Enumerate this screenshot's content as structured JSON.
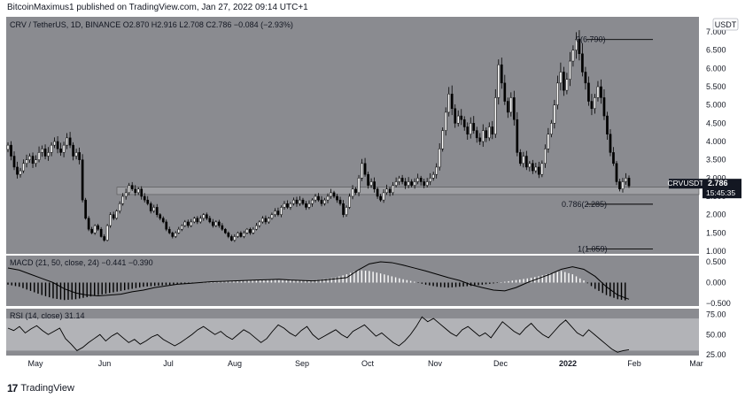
{
  "header": {
    "publisher": "BitcoinMaximus1",
    "published_text": "BitcoinMaximus1 published on TradingView.com, Jan 27, 2022 09:14 UTC+1"
  },
  "colors": {
    "price_bg": "#8a8b90",
    "indicator_bg": "#8a8b90",
    "rsi_band": "#b2b3b7",
    "candle": "#000000",
    "macd_pos": "#ffffff",
    "macd_neg": "#000000",
    "support_zone": "#9d9ea2",
    "price_tag": "#131722"
  },
  "chart_data": [
    {
      "type": "candlestick",
      "title": "CRV / TetherUS, 1D, BINANCE",
      "ohlc": {
        "open_label": "O",
        "open": "2.870",
        "high_label": "H",
        "high": "2.916",
        "low_label": "L",
        "low": "2.708",
        "close_label": "C",
        "close": "2.786",
        "change": "−0.084 (−2.93%)"
      },
      "currency": "USDT",
      "symbol": "CRVUSDT",
      "last_price": "2.786",
      "countdown": "15:45:35",
      "ylim": [
        1.0,
        7.0
      ],
      "y_ticks": [
        "7.000",
        "6.500",
        "6.000",
        "5.500",
        "5.000",
        "4.500",
        "4.000",
        "3.500",
        "3.000",
        "2.500",
        "2.000",
        "1.500",
        "1.000"
      ],
      "x_ticks": [
        "May",
        "Jun",
        "Jul",
        "Aug",
        "Sep",
        "Oct",
        "Nov",
        "Dec",
        "2022",
        "Feb",
        "Mar"
      ],
      "support_zone": [
        2.55,
        2.75
      ],
      "fib_levels": [
        {
          "label": "0(6.790)",
          "value": 6.79
        },
        {
          "label": "0.786(2.285)",
          "value": 2.285
        },
        {
          "label": "1(1.059)",
          "value": 1.059
        }
      ],
      "close_series": [
        3.9,
        3.6,
        3.3,
        3.1,
        3.2,
        3.4,
        3.5,
        3.6,
        3.4,
        3.5,
        3.7,
        3.8,
        3.6,
        3.7,
        3.9,
        4.0,
        3.8,
        3.7,
        3.9,
        4.1,
        3.9,
        3.6,
        3.7,
        3.5,
        2.4,
        1.9,
        1.6,
        1.5,
        1.7,
        1.6,
        1.4,
        1.3,
        1.7,
        2.0,
        1.9,
        2.1,
        2.3,
        2.5,
        2.6,
        2.8,
        2.7,
        2.6,
        2.7,
        2.5,
        2.4,
        2.3,
        2.1,
        2.2,
        2.0,
        1.9,
        1.8,
        1.6,
        1.5,
        1.4,
        1.5,
        1.6,
        1.7,
        1.8,
        1.7,
        1.8,
        1.9,
        1.8,
        1.9,
        2.0,
        1.9,
        1.8,
        1.7,
        1.8,
        1.7,
        1.6,
        1.5,
        1.4,
        1.3,
        1.4,
        1.5,
        1.4,
        1.5,
        1.6,
        1.5,
        1.6,
        1.7,
        1.8,
        1.9,
        1.8,
        1.9,
        2.0,
        2.1,
        2.0,
        2.2,
        2.3,
        2.2,
        2.3,
        2.4,
        2.3,
        2.4,
        2.3,
        2.2,
        2.3,
        2.4,
        2.5,
        2.4,
        2.3,
        2.4,
        2.5,
        2.6,
        2.5,
        2.4,
        2.3,
        2.0,
        2.2,
        2.5,
        2.7,
        2.6,
        3.0,
        3.4,
        3.1,
        2.8,
        2.9,
        2.7,
        2.5,
        2.4,
        2.6,
        2.7,
        2.6,
        2.8,
        2.9,
        3.0,
        2.9,
        2.8,
        2.9,
        2.8,
        2.9,
        3.0,
        2.9,
        2.8,
        2.9,
        3.0,
        3.1,
        3.3,
        3.8,
        4.3,
        4.8,
        5.3,
        4.9,
        4.5,
        4.7,
        4.6,
        4.4,
        4.2,
        4.5,
        4.3,
        4.1,
        4.0,
        4.3,
        4.1,
        4.4,
        4.2,
        5.2,
        6.1,
        5.6,
        5.1,
        4.8,
        5.2,
        4.6,
        3.7,
        3.4,
        3.6,
        3.3,
        3.4,
        3.2,
        3.3,
        3.1,
        3.4,
        3.8,
        4.2,
        4.5,
        5.0,
        5.6,
        5.9,
        5.4,
        5.7,
        6.2,
        6.5,
        6.8,
        6.4,
        5.9,
        5.6,
        5.1,
        4.9,
        5.2,
        5.5,
        5.2,
        4.7,
        4.2,
        3.7,
        3.4,
        2.9,
        2.7,
        2.9,
        3.0,
        2.786
      ]
    },
    {
      "type": "bar",
      "title": "MACD (21, 50, close, 24)",
      "values_text": [
        "−0.441",
        "−0.390"
      ],
      "ylim": [
        -0.5,
        0.5
      ],
      "y_ticks": [
        "0.500",
        "0.000",
        "−0.500"
      ],
      "signal_series": [
        0.35,
        0.3,
        0.2,
        0.1,
        0.0,
        -0.15,
        -0.25,
        -0.3,
        -0.32,
        -0.3,
        -0.28,
        -0.22,
        -0.18,
        -0.12,
        -0.08,
        -0.04,
        -0.02,
        0.0,
        0.02,
        0.03,
        0.04,
        0.05,
        0.06,
        0.07,
        0.08,
        0.06,
        0.05,
        0.04,
        0.06,
        0.09,
        0.12,
        0.3,
        0.45,
        0.5,
        0.48,
        0.42,
        0.35,
        0.28,
        0.2,
        0.12,
        0.05,
        -0.05,
        -0.12,
        -0.18,
        -0.2,
        -0.12,
        0.0,
        0.1,
        0.2,
        0.32,
        0.38,
        0.32,
        0.15,
        -0.1,
        -0.3,
        -0.4
      ],
      "histogram": [
        -0.05,
        -0.1,
        -0.2,
        -0.3,
        -0.38,
        -0.42,
        -0.4,
        -0.35,
        -0.3,
        -0.25,
        -0.2,
        -0.15,
        -0.1,
        -0.08,
        -0.06,
        -0.04,
        -0.02,
        0.0,
        0.01,
        0.02,
        0.03,
        0.04,
        0.05,
        0.06,
        0.06,
        0.05,
        0.04,
        0.05,
        0.08,
        0.12,
        0.2,
        0.3,
        0.28,
        0.22,
        0.15,
        0.08,
        0.02,
        -0.05,
        -0.1,
        -0.12,
        -0.1,
        -0.08,
        -0.05,
        -0.02,
        0.02,
        0.06,
        0.1,
        0.15,
        0.22,
        0.28,
        0.2,
        0.05,
        -0.15,
        -0.3,
        -0.4,
        -0.44
      ]
    },
    {
      "type": "line",
      "title": "RSI (14, close)",
      "value_text": "31.14",
      "ylim": [
        25,
        80
      ],
      "band": [
        30,
        70
      ],
      "y_ticks": [
        "75.00",
        "50.00",
        "25.00"
      ],
      "series": [
        58,
        55,
        60,
        52,
        57,
        61,
        55,
        50,
        54,
        58,
        45,
        38,
        30,
        34,
        40,
        45,
        50,
        42,
        48,
        52,
        46,
        40,
        44,
        38,
        42,
        47,
        50,
        44,
        40,
        36,
        40,
        45,
        50,
        56,
        60,
        55,
        50,
        54,
        48,
        44,
        50,
        56,
        52,
        46,
        40,
        45,
        54,
        62,
        58,
        52,
        48,
        55,
        60,
        50,
        44,
        48,
        52,
        56,
        50,
        46,
        54,
        58,
        62,
        55,
        48,
        52,
        46,
        40,
        36,
        42,
        50,
        60,
        72,
        66,
        70,
        64,
        58,
        52,
        48,
        56,
        60,
        54,
        48,
        52,
        46,
        56,
        66,
        60,
        54,
        50,
        58,
        64,
        56,
        50,
        46,
        54,
        62,
        68,
        60,
        52,
        48,
        56,
        50,
        44,
        38,
        32,
        28,
        30,
        31.14
      ]
    }
  ],
  "footer": {
    "logo_text": "TradingView"
  }
}
